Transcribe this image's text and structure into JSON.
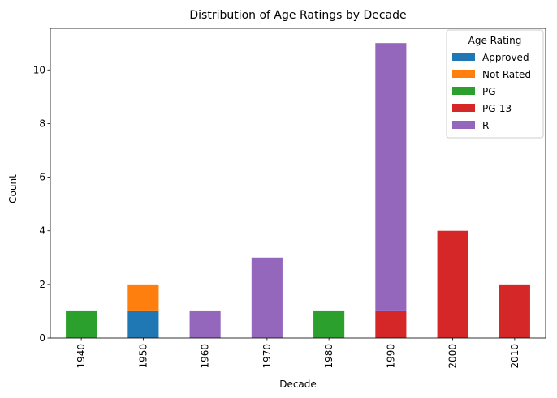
{
  "chart_data": {
    "type": "bar",
    "stacked": true,
    "title": "Distribution of Age Ratings by Decade",
    "xlabel": "Decade",
    "ylabel": "Count",
    "ylim": [
      0,
      11.55
    ],
    "yticks": [
      0,
      2,
      4,
      6,
      8,
      10
    ],
    "categories": [
      "1940",
      "1950",
      "1960",
      "1970",
      "1980",
      "1990",
      "2000",
      "2010"
    ],
    "series": [
      {
        "name": "Approved",
        "color": "#1f77b4",
        "values": [
          0,
          1,
          0,
          0,
          0,
          0,
          0,
          0
        ]
      },
      {
        "name": "Not Rated",
        "color": "#ff7f0e",
        "values": [
          0,
          1,
          0,
          0,
          0,
          0,
          0,
          0
        ]
      },
      {
        "name": "PG",
        "color": "#2ca02c",
        "values": [
          1,
          0,
          0,
          0,
          1,
          0,
          0,
          0
        ]
      },
      {
        "name": "PG-13",
        "color": "#d62728",
        "values": [
          0,
          0,
          0,
          0,
          0,
          1,
          4,
          2
        ]
      },
      {
        "name": "R",
        "color": "#9467bd",
        "values": [
          0,
          0,
          1,
          3,
          0,
          10,
          0,
          0
        ]
      }
    ],
    "legend": {
      "title": "Age Rating",
      "placement": "top-right"
    },
    "grid": false
  }
}
